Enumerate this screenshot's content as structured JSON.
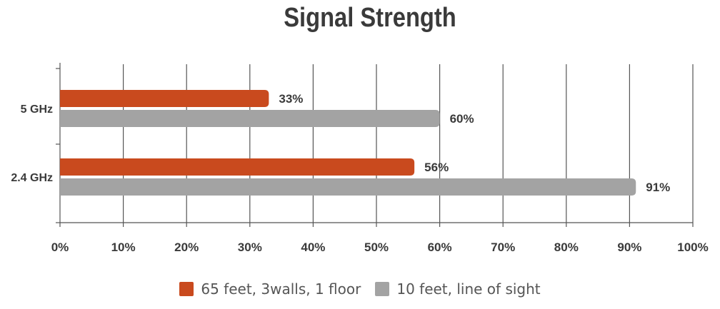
{
  "chart_data": {
    "type": "bar",
    "orientation": "horizontal",
    "title": "Signal Strength",
    "categories": [
      "5 GHz",
      "2.4 GHz"
    ],
    "series": [
      {
        "name": "65 feet, 3walls, 1 floor",
        "values": [
          33,
          56
        ],
        "color": "#c94a1e",
        "labels": [
          "33%",
          "56%"
        ]
      },
      {
        "name": "10 feet, line of sight",
        "values": [
          60,
          91
        ],
        "color": "#a3a3a3",
        "labels": [
          "60%",
          "91%"
        ]
      }
    ],
    "xlim": [
      0,
      100
    ],
    "x_ticks": [
      0,
      10,
      20,
      30,
      40,
      50,
      60,
      70,
      80,
      90,
      100
    ],
    "x_tick_labels": [
      "0%",
      "10%",
      "20%",
      "30%",
      "40%",
      "50%",
      "60%",
      "70%",
      "80%",
      "90%",
      "100%"
    ],
    "grid": "vertical",
    "legend": "bottom-center"
  }
}
